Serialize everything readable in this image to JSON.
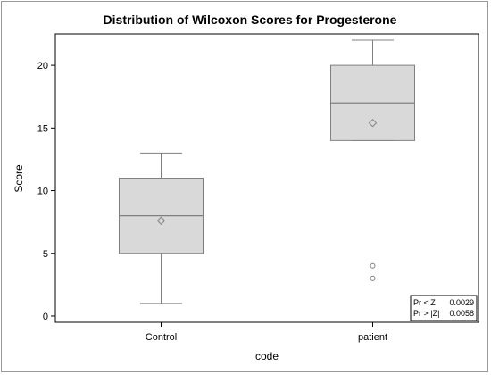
{
  "chart_data": {
    "type": "box",
    "title": "Distribution of Wilcoxon Scores for Progesterone",
    "xlabel": "code",
    "ylabel": "Score",
    "categories": [
      "Control",
      "patient"
    ],
    "ylim": [
      -0.5,
      22.5
    ],
    "yticks": [
      0,
      5,
      10,
      15,
      20
    ],
    "yticklabels": [
      "0",
      "5",
      "10",
      "15",
      "20"
    ],
    "grid": false,
    "boxes": [
      {
        "category": "Control",
        "whisker_low": 1,
        "q1": 5,
        "median": 8,
        "q3": 11,
        "whisker_high": 13,
        "mean": 7.6,
        "outliers": []
      },
      {
        "category": "patient",
        "whisker_low": 14,
        "q1": 14,
        "median": 17,
        "q3": 20,
        "whisker_high": 22,
        "mean": 15.4,
        "outliers": [
          4,
          3
        ]
      }
    ],
    "inset": {
      "placement": "bottom-right",
      "rows": [
        {
          "label": "Pr < Z",
          "value": "0.0029"
        },
        {
          "label": "Pr > |Z|",
          "value": "0.0058"
        }
      ]
    },
    "colors": {
      "box_fill": "#d9d9d9",
      "box_stroke": "#808080",
      "axis": "#000000"
    }
  }
}
